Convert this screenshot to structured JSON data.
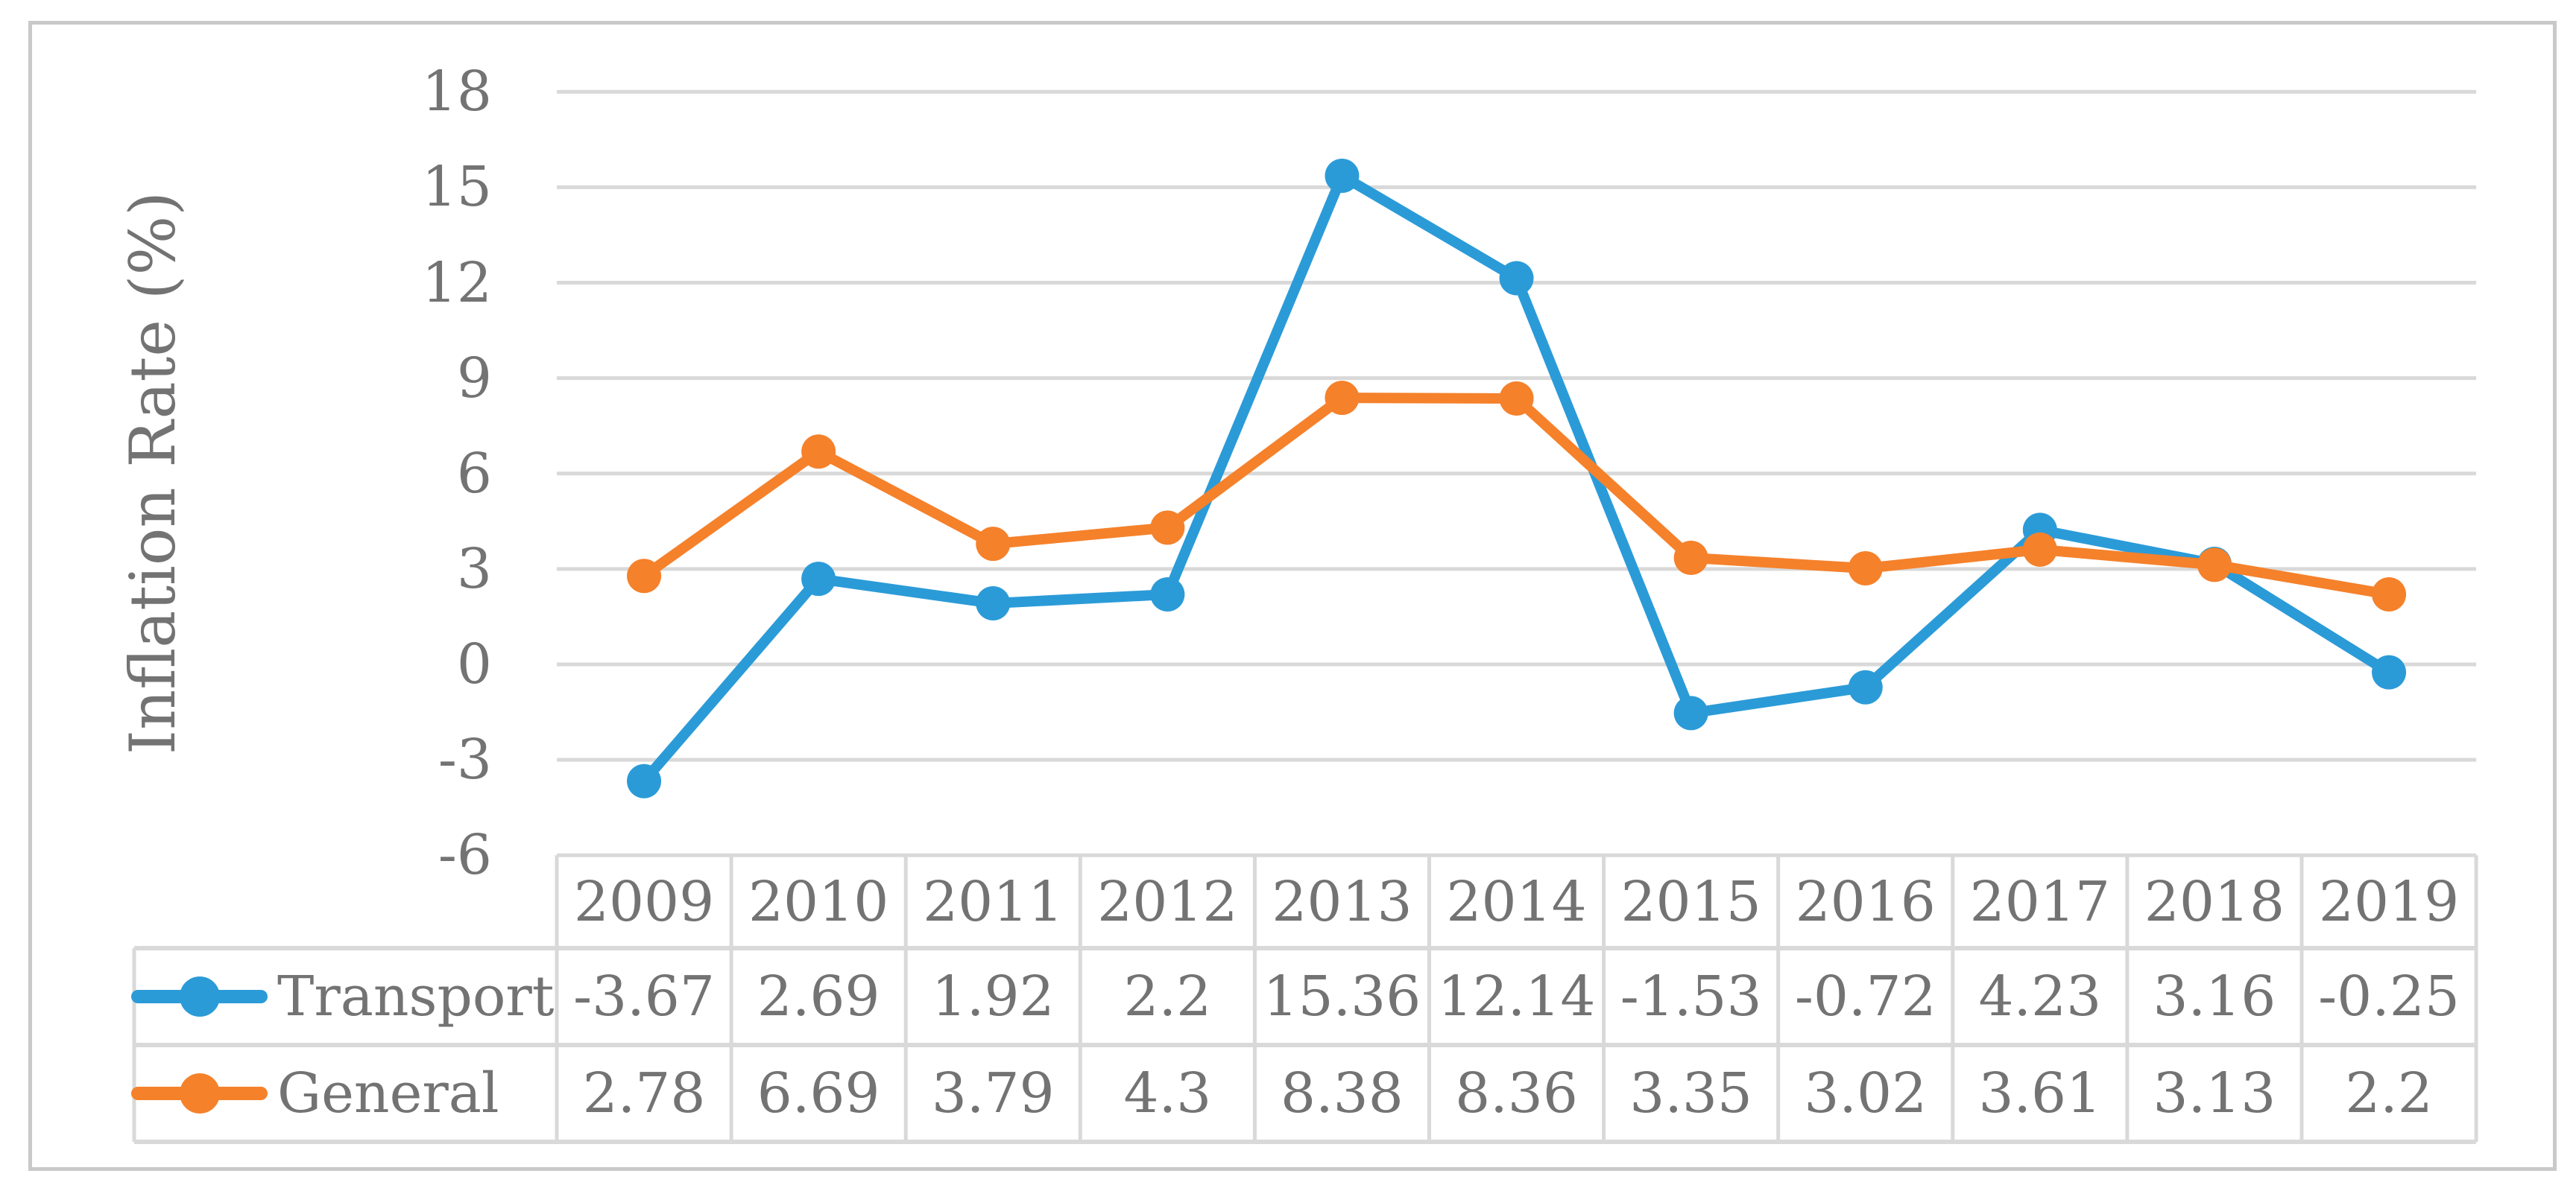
{
  "chart_data": {
    "type": "line",
    "title": "",
    "xlabel": "",
    "ylabel": "Inflation Rate (%)",
    "categories": [
      "2009",
      "2010",
      "2011",
      "2012",
      "2013",
      "2014",
      "2015",
      "2016",
      "2017",
      "2018",
      "2019"
    ],
    "series": [
      {
        "name": "Transport",
        "color": "#2B9BD8",
        "marker": "circle",
        "values": [
          -3.67,
          2.69,
          1.92,
          2.2,
          15.36,
          12.14,
          -1.53,
          -0.72,
          4.23,
          3.16,
          -0.25
        ]
      },
      {
        "name": "General",
        "color": "#F5812B",
        "marker": "circle",
        "values": [
          2.78,
          6.69,
          3.79,
          4.3,
          8.38,
          8.36,
          3.35,
          3.02,
          3.61,
          3.13,
          2.2
        ]
      }
    ],
    "y_axis": {
      "min": -6,
      "max": 18,
      "step": 3,
      "ticks": [
        18,
        15,
        12,
        9,
        6,
        3,
        0,
        -3,
        -6
      ]
    },
    "grid": "horizontal-only",
    "legend_position": "left-of-data-table-rows",
    "data_table_shown": true,
    "colors": {
      "gridline": "#D9D9D9",
      "table_border": "#D9D9D9",
      "label_text": "#737373",
      "outer_frame": "#C9C9C9",
      "background": "#FFFFFF"
    }
  }
}
